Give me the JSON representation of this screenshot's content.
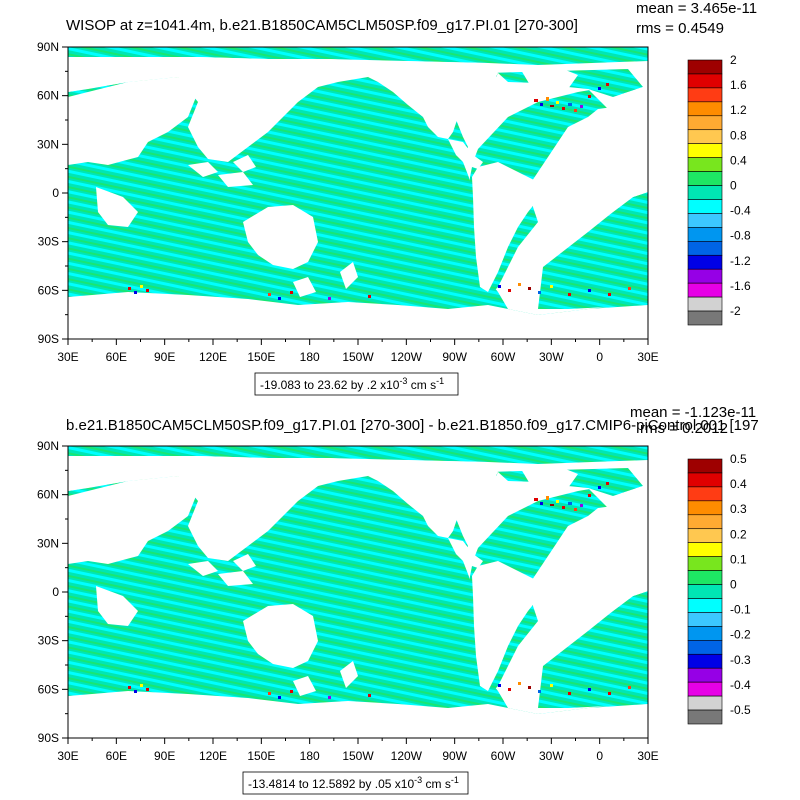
{
  "panels": [
    {
      "title": "WISOP at z=1041.4m, b.e21.B1850CAM5CLM50SP.f09_g17.PI.01 [270-300]",
      "mean": "mean = 3.465e-11",
      "rms": "rms = 0.4549",
      "range_label": "-19.083 to 23.62 by .2 x10",
      "range_exp": "-3",
      "range_units": " cm s",
      "range_units_exp": "-1",
      "colorbar_labels": [
        "2",
        "1.6",
        "1.2",
        "0.8",
        "0.4",
        "0",
        "-0.4",
        "-0.8",
        "-1.2",
        "-1.6",
        "-2"
      ]
    },
    {
      "title": "b.e21.B1850CAM5CLM50SP.f09_g17.PI.01 [270-300] - b.e21.B1850.f09_g17.CMIP6-piControl.001 [197",
      "mean": "mean = -1.123e-11",
      "rms": "rms = 0.2012",
      "range_label": "-13.4814 to 12.5892 by .05 x10",
      "range_exp": "-3",
      "range_units": " cm s",
      "range_units_exp": "-1",
      "colorbar_labels": [
        "0.5",
        "0.4",
        "0.3",
        "0.2",
        "0.1",
        "0",
        "-0.1",
        "-0.2",
        "-0.3",
        "-0.4",
        "-0.5"
      ]
    }
  ],
  "lat_labels": [
    "90N",
    "60N",
    "30N",
    "0",
    "30S",
    "60S",
    "90S"
  ],
  "lon_labels": [
    "30E",
    "60E",
    "90E",
    "120E",
    "150E",
    "180",
    "150W",
    "120W",
    "90W",
    "60W",
    "30W",
    "0",
    "30E"
  ],
  "colorbar_colors": [
    "#9e0000",
    "#e00000",
    "#ff3c14",
    "#ff8c00",
    "#ffaa32",
    "#ffc850",
    "#ffff00",
    "#78e61e",
    "#1ee664",
    "#00e6b4",
    "#00ffff",
    "#3cc8ff",
    "#0096f0",
    "#0064e6",
    "#0000e6",
    "#9600e6",
    "#e600e6",
    "#d2d2d2",
    "#787878"
  ],
  "colors": {
    "ocean_main": "#00e6b4",
    "ocean_light": "#00ffff",
    "ocean_green": "#1ee664"
  }
}
